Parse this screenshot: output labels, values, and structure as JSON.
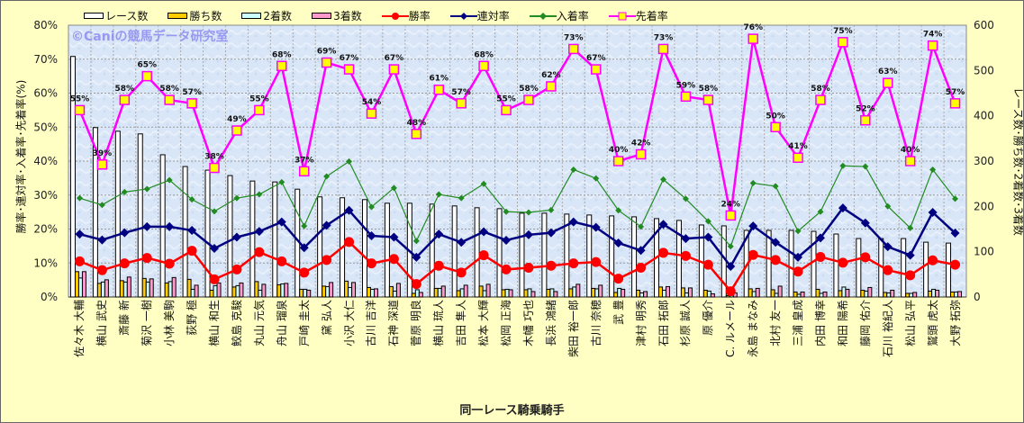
{
  "chart_data": {
    "type": "bar+line",
    "title": "",
    "xlabel": "同一レース騎乗騎手",
    "ylabel_left": "勝率･連対率･入着率･先着率(%)",
    "ylabel_right": "レース数･勝ち数･2着数･3着数",
    "ylim_left": [
      0,
      80
    ],
    "ylim_right": [
      0,
      600
    ],
    "yticks_left": [
      "0%",
      "10%",
      "20%",
      "30%",
      "40%",
      "50%",
      "60%",
      "70%",
      "80%"
    ],
    "yticks_right": [
      "0",
      "100",
      "200",
      "300",
      "400",
      "500",
      "600"
    ],
    "grid": true,
    "legend_position": "top",
    "watermark": "©Caniの競馬データ研究室",
    "categories": [
      "佐々木 大輔",
      "横山 武史",
      "斎藤 新",
      "菊沢 一樹",
      "小林 美駒",
      "荻野 極",
      "横山 和生",
      "鮫島 克駿",
      "丸山 元気",
      "舟山 瑠泉",
      "戸崎 圭太",
      "黛 弘人",
      "小沢 大仁",
      "古川 吉洋",
      "石神 深道",
      "菅原 明良",
      "横山 琉人",
      "吉田 隼人",
      "松本 大輝",
      "松岡 正海",
      "木幡 巧也",
      "長浜 鴻緒",
      "柴田 裕一郎",
      "古川 奈穂",
      "武 豊",
      "津村 明秀",
      "石田 拓郎",
      "杉原 誠人",
      "原 優介",
      "C. ルメール",
      "永島 まなみ",
      "北村 友一",
      "三浦 皇成",
      "内田 博幸",
      "和田 陽希",
      "藤岡 佑介",
      "石川 裕紀人",
      "松山 弘平",
      "鷲頭 虎太",
      "大野 拓弥"
    ],
    "bar_series": [
      {
        "name": "レース数",
        "axis": "right",
        "color": "#FFFFFF",
        "values": [
          531,
          374,
          366,
          360,
          314,
          288,
          280,
          268,
          256,
          254,
          238,
          221,
          219,
          215,
          207,
          207,
          205,
          201,
          197,
          195,
          185,
          185,
          183,
          181,
          179,
          177,
          173,
          169,
          159,
          157,
          147,
          147,
          147,
          145,
          139,
          129,
          129,
          129,
          121,
          119
        ]
      },
      {
        "name": "勝ち数",
        "axis": "right",
        "color": "#FFCC00",
        "values": [
          56,
          30,
          36,
          41,
          31,
          39,
          15,
          22,
          34,
          27,
          17,
          24,
          35,
          21,
          23,
          8,
          19,
          14,
          24,
          16,
          16,
          17,
          18,
          19,
          10,
          15,
          22,
          20,
          15,
          3,
          18,
          16,
          11,
          17,
          14,
          15,
          10,
          8,
          13,
          11
        ]
      },
      {
        "name": "2着数",
        "axis": "right",
        "color": "#CCFFFF",
        "values": [
          42,
          33,
          33,
          33,
          34,
          17,
          25,
          25,
          15,
          29,
          17,
          23,
          21,
          17,
          13,
          16,
          19,
          18,
          14,
          17,
          18,
          18,
          22,
          18,
          19,
          9,
          15,
          9,
          13,
          11,
          12,
          8,
          6,
          8,
          22,
          13,
          9,
          8,
          17,
          11
        ]
      },
      {
        "name": "3着数",
        "axis": "right",
        "color": "#FF99CC",
        "values": [
          56,
          38,
          44,
          40,
          43,
          26,
          31,
          31,
          28,
          30,
          15,
          32,
          32,
          18,
          30,
          10,
          24,
          26,
          28,
          16,
          12,
          12,
          28,
          26,
          17,
          12,
          23,
          20,
          7,
          9,
          19,
          24,
          11,
          11,
          17,
          21,
          15,
          10,
          15,
          12
        ]
      }
    ],
    "line_series": [
      {
        "name": "勝率",
        "axis": "left",
        "color": "#FF0000",
        "marker": "circle",
        "values": [
          10.5,
          7.9,
          9.9,
          11.5,
          9.8,
          13.6,
          5.2,
          8.1,
          13.2,
          10.5,
          7.2,
          10.9,
          16.2,
          9.9,
          11.2,
          3.8,
          9.2,
          7.2,
          12.3,
          8.1,
          8.6,
          9.2,
          9.9,
          10.3,
          5.4,
          8.6,
          13.0,
          12.1,
          9.5,
          1.7,
          12.4,
          10.9,
          7.5,
          11.8,
          10.1,
          11.7,
          7.9,
          6.4,
          10.8,
          9.5
        ]
      },
      {
        "name": "連対率",
        "axis": "left",
        "color": "#000080",
        "marker": "diamond",
        "values": [
          18.5,
          16.8,
          18.9,
          20.7,
          20.7,
          19.6,
          14.3,
          17.6,
          19.3,
          22.1,
          14.5,
          21.1,
          25.5,
          18.0,
          17.6,
          11.7,
          18.5,
          16.1,
          19.2,
          16.7,
          18.3,
          18.9,
          22.1,
          20.5,
          15.9,
          13.7,
          21.4,
          17.2,
          17.6,
          9.0,
          20.9,
          16.1,
          11.7,
          17.4,
          26.2,
          21.8,
          14.8,
          12.3,
          24.9,
          18.8
        ]
      },
      {
        "name": "入着率",
        "axis": "left",
        "color": "#228B22",
        "marker": "small-diamond",
        "values": [
          29.1,
          27.1,
          30.9,
          31.8,
          34.4,
          28.7,
          25.2,
          29.1,
          30.2,
          33.8,
          20.9,
          35.5,
          39.9,
          26.5,
          32.1,
          16.5,
          30.2,
          29.1,
          33.3,
          25.1,
          24.9,
          25.6,
          37.5,
          34.9,
          25.5,
          20.7,
          34.6,
          28.9,
          22.3,
          14.9,
          33.5,
          32.6,
          19.4,
          25.1,
          38.6,
          38.4,
          26.7,
          20.3,
          37.5,
          28.9
        ]
      },
      {
        "name": "先着率",
        "axis": "left",
        "color": "#FF00FF",
        "marker": "square",
        "values": [
          55,
          39,
          58,
          65,
          58,
          57,
          38,
          49,
          55,
          68,
          37,
          69,
          67,
          54,
          67,
          48,
          61,
          57,
          68,
          55,
          58,
          62,
          73,
          67,
          40,
          42,
          73,
          59,
          58,
          24,
          76,
          50,
          41,
          58,
          75,
          52,
          63,
          40,
          74,
          57
        ],
        "labels": [
          "55%",
          "39%",
          "58%",
          "65%",
          "58%",
          "57%",
          "38%",
          "49%",
          "55%",
          "68%",
          "37%",
          "69%",
          "67%",
          "54%",
          "67%",
          "48%",
          "61%",
          "57%",
          "68%",
          "55%",
          "58%",
          "62%",
          "73%",
          "67%",
          "40%",
          "42%",
          "73%",
          "59%",
          "58%",
          "24%",
          "76%",
          "50%",
          "41%",
          "58%",
          "75%",
          "52%",
          "63%",
          "40%",
          "74%",
          "57%"
        ]
      }
    ]
  }
}
